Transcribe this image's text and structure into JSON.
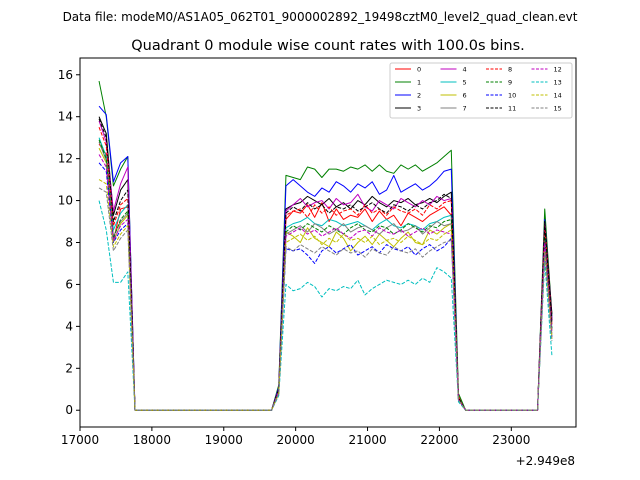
{
  "figure": {
    "suptitle": "Data file: modeM0/AS1A05_062T01_9000002892_19498cztM0_level2_quad_clean.evt"
  },
  "chart_data": {
    "type": "line",
    "title": "Quadrant 0 module wise count rates with 100.0s bins.",
    "xlabel": "",
    "ylabel": "",
    "x_offset_label": "+2.949e8",
    "xlim": [
      17000,
      23900
    ],
    "ylim": [
      -0.8,
      16.8
    ],
    "xticks": [
      17000,
      18000,
      19000,
      20000,
      21000,
      22000,
      23000
    ],
    "yticks": [
      0,
      2,
      4,
      6,
      8,
      10,
      12,
      14,
      16
    ],
    "xtick_labels": [
      "17000",
      "18000",
      "19000",
      "20000",
      "21000",
      "22000",
      "23000"
    ],
    "ytick_labels": [
      "0",
      "2",
      "4",
      "6",
      "8",
      "10",
      "12",
      "14",
      "16"
    ],
    "grid": false,
    "legend_position": "top-right",
    "legend_columns": 4,
    "x": [
      17265,
      17365,
      17465,
      17565,
      17665,
      17765,
      17865,
      19665,
      19765,
      19865,
      19965,
      20065,
      20165,
      20265,
      20365,
      20465,
      20565,
      20665,
      20765,
      20865,
      20965,
      21065,
      21165,
      21265,
      21365,
      21465,
      21565,
      21665,
      21765,
      21865,
      21965,
      22065,
      22165,
      22265,
      22365,
      23365,
      23465,
      23565
    ],
    "series": [
      {
        "name": "0",
        "color": "#ff0000",
        "dash": "solid",
        "values": [
          12.7,
          12.2,
          8.1,
          9.6,
          9.7,
          0,
          0,
          0,
          1.0,
          9.1,
          9.5,
          9.4,
          9.8,
          9.2,
          9.9,
          9.0,
          9.6,
          9.1,
          9.3,
          9.2,
          9.6,
          9.0,
          9.5,
          9.1,
          9.3,
          8.8,
          9.4,
          9.2,
          9.0,
          9.3,
          9.5,
          9.7,
          9.3,
          0.7,
          0,
          0,
          8.4,
          4.3
        ]
      },
      {
        "name": "1",
        "color": "#008000",
        "dash": "solid",
        "values": [
          15.7,
          14.0,
          10.7,
          11.5,
          12.1,
          0,
          0,
          0,
          1.2,
          11.2,
          11.1,
          11.0,
          11.6,
          11.5,
          11.1,
          11.5,
          11.5,
          11.4,
          11.6,
          11.5,
          11.7,
          11.4,
          11.7,
          11.4,
          11.3,
          11.7,
          11.5,
          11.7,
          11.4,
          11.6,
          11.8,
          12.1,
          12.4,
          0.8,
          0,
          0,
          9.6,
          4.5
        ]
      },
      {
        "name": "2",
        "color": "#0000ff",
        "dash": "solid",
        "values": [
          14.5,
          14.1,
          10.9,
          11.8,
          12.1,
          0,
          0,
          0,
          1.1,
          10.7,
          11.0,
          10.7,
          10.4,
          10.2,
          10.6,
          10.4,
          10.9,
          10.7,
          10.4,
          10.8,
          10.6,
          10.9,
          10.3,
          10.5,
          11.2,
          10.4,
          10.6,
          10.8,
          10.5,
          10.7,
          11.0,
          11.4,
          11.5,
          0.5,
          0,
          0,
          9.1,
          4.4
        ]
      },
      {
        "name": "3",
        "color": "#000000",
        "dash": "solid",
        "values": [
          14.0,
          13.2,
          9.3,
          10.5,
          11.0,
          0,
          0,
          0,
          1.0,
          9.6,
          9.8,
          9.9,
          10.2,
          10.0,
          9.8,
          10.1,
          9.7,
          9.9,
          9.6,
          10.0,
          9.8,
          10.2,
          9.9,
          9.7,
          10.0,
          9.9,
          10.1,
          9.8,
          9.9,
          10.1,
          9.9,
          10.2,
          10.4,
          0.6,
          0,
          0,
          9.0,
          4.6
        ]
      },
      {
        "name": "4",
        "color": "#bf00bf",
        "dash": "solid",
        "values": [
          13.8,
          12.8,
          9.5,
          10.8,
          11.6,
          0,
          0,
          0,
          1.0,
          9.5,
          9.8,
          10.1,
          9.7,
          9.9,
          10.0,
          9.6,
          10.1,
          9.8,
          9.9,
          10.3,
          9.7,
          9.5,
          10.0,
          9.8,
          9.6,
          10.1,
          9.9,
          9.7,
          10.0,
          9.8,
          10.2,
          10.0,
          10.1,
          0.6,
          0,
          0,
          8.9,
          4.3
        ]
      },
      {
        "name": "5",
        "color": "#00bfbf",
        "dash": "solid",
        "values": [
          13.0,
          12.1,
          8.6,
          9.4,
          9.8,
          0,
          0,
          0,
          0.9,
          8.7,
          8.9,
          9.0,
          9.2,
          8.9,
          8.8,
          9.1,
          9.0,
          8.8,
          8.9,
          9.0,
          8.8,
          8.6,
          8.9,
          9.1,
          8.8,
          8.7,
          8.9,
          8.8,
          8.6,
          8.9,
          9.0,
          9.2,
          9.3,
          0.6,
          0,
          0,
          8.3,
          3.9
        ]
      },
      {
        "name": "6",
        "color": "#bfbf00",
        "dash": "solid",
        "values": [
          12.5,
          11.8,
          8.0,
          8.9,
          9.3,
          0,
          0,
          0,
          0.8,
          8.5,
          8.3,
          8.0,
          8.7,
          8.2,
          8.0,
          7.8,
          8.5,
          8.2,
          7.6,
          8.0,
          8.3,
          7.9,
          8.4,
          8.1,
          7.8,
          8.2,
          8.5,
          8.0,
          7.9,
          8.6,
          8.4,
          8.7,
          8.9,
          0.5,
          0,
          0,
          7.9,
          3.6
        ]
      },
      {
        "name": "7",
        "color": "#808080",
        "dash": "solid",
        "values": [
          12.8,
          11.9,
          8.3,
          9.0,
          9.4,
          0,
          0,
          0,
          0.9,
          8.4,
          8.6,
          8.8,
          8.5,
          8.9,
          8.7,
          8.4,
          8.6,
          8.9,
          8.5,
          8.7,
          8.8,
          8.6,
          8.4,
          8.7,
          8.9,
          8.5,
          8.6,
          8.8,
          8.4,
          8.7,
          9.0,
          8.8,
          8.9,
          0.6,
          0,
          0,
          8.0,
          3.8
        ]
      },
      {
        "name": "8",
        "color": "#ff0000",
        "dash": "dashed",
        "values": [
          13.5,
          12.6,
          8.8,
          9.8,
          10.1,
          0,
          0,
          0,
          1.0,
          9.3,
          9.5,
          9.6,
          9.2,
          9.8,
          9.4,
          9.7,
          9.3,
          9.5,
          9.6,
          9.3,
          9.8,
          9.4,
          9.6,
          9.3,
          9.7,
          9.5,
          9.4,
          9.6,
          9.3,
          9.8,
          9.6,
          9.9,
          10.0,
          0.6,
          0,
          0,
          8.8,
          4.1
        ]
      },
      {
        "name": "9",
        "color": "#008000",
        "dash": "dashed",
        "values": [
          12.9,
          12.0,
          8.2,
          9.1,
          9.5,
          0,
          0,
          0,
          0.9,
          8.5,
          8.8,
          8.6,
          8.9,
          8.7,
          8.5,
          8.8,
          8.6,
          8.4,
          8.7,
          8.9,
          8.6,
          8.5,
          8.8,
          8.7,
          8.4,
          8.6,
          8.9,
          8.7,
          8.5,
          8.8,
          8.7,
          9.0,
          9.1,
          0.5,
          0,
          0,
          8.2,
          3.9
        ]
      },
      {
        "name": "10",
        "color": "#0000ff",
        "dash": "dashed",
        "values": [
          11.8,
          11.4,
          8.0,
          8.6,
          8.9,
          0,
          0,
          0,
          0.8,
          7.7,
          7.6,
          7.7,
          7.4,
          7.0,
          7.6,
          7.8,
          7.5,
          7.7,
          7.9,
          7.4,
          7.6,
          7.8,
          7.5,
          7.9,
          7.7,
          7.6,
          7.8,
          7.4,
          7.7,
          7.9,
          7.6,
          7.8,
          8.2,
          0.5,
          0,
          0,
          7.7,
          3.5
        ]
      },
      {
        "name": "11",
        "color": "#000000",
        "dash": "dashed",
        "values": [
          13.9,
          13.0,
          9.0,
          10.0,
          10.5,
          0,
          0,
          0,
          1.0,
          9.4,
          9.7,
          9.5,
          9.9,
          9.6,
          9.8,
          9.4,
          9.7,
          9.6,
          9.8,
          9.5,
          9.7,
          9.9,
          9.6,
          9.4,
          9.8,
          9.7,
          9.5,
          9.8,
          9.6,
          9.9,
          10.0,
          10.3,
          10.1,
          0.6,
          0,
          0,
          8.9,
          4.2
        ]
      },
      {
        "name": "12",
        "color": "#bf00bf",
        "dash": "dashed",
        "values": [
          12.2,
          11.6,
          8.1,
          8.8,
          9.1,
          0,
          0,
          0,
          0.9,
          8.3,
          8.5,
          8.7,
          8.4,
          8.6,
          8.3,
          8.5,
          8.7,
          8.4,
          8.2,
          8.5,
          8.6,
          8.3,
          8.7,
          8.5,
          8.4,
          8.6,
          8.3,
          8.5,
          8.7,
          8.4,
          8.6,
          8.5,
          8.4,
          0.5,
          0,
          0,
          8.0,
          3.7
        ]
      },
      {
        "name": "13",
        "color": "#00bfbf",
        "dash": "dashed",
        "values": [
          10.0,
          8.6,
          6.1,
          6.1,
          6.6,
          0,
          0,
          0,
          0.7,
          6.0,
          5.7,
          5.8,
          6.1,
          5.9,
          5.4,
          5.8,
          5.7,
          5.9,
          5.8,
          6.2,
          5.5,
          5.8,
          6.0,
          6.2,
          6.1,
          6.0,
          6.2,
          6.0,
          6.3,
          6.1,
          6.8,
          6.6,
          6.3,
          0.4,
          0,
          0,
          7.1,
          2.6
        ]
      },
      {
        "name": "14",
        "color": "#bfbf00",
        "dash": "dashed",
        "values": [
          11.0,
          10.8,
          7.8,
          8.4,
          8.8,
          0,
          0,
          0,
          0.8,
          8.0,
          8.2,
          8.4,
          8.1,
          8.3,
          7.9,
          8.2,
          8.0,
          8.4,
          8.1,
          8.2,
          8.0,
          8.3,
          7.9,
          8.1,
          8.2,
          8.0,
          8.3,
          8.1,
          7.9,
          8.2,
          8.1,
          8.4,
          8.6,
          0.5,
          0,
          0,
          7.6,
          3.4
        ]
      },
      {
        "name": "15",
        "color": "#808080",
        "dash": "dashed",
        "values": [
          10.6,
          10.4,
          7.6,
          8.2,
          8.6,
          0,
          0,
          0,
          0.8,
          7.8,
          7.6,
          7.9,
          7.7,
          7.5,
          7.8,
          7.6,
          7.4,
          7.7,
          7.5,
          7.6,
          7.3,
          7.7,
          7.5,
          7.4,
          7.8,
          7.6,
          7.5,
          7.7,
          7.3,
          7.6,
          7.8,
          8.0,
          8.1,
          0.5,
          0,
          0,
          7.5,
          3.3
        ]
      }
    ]
  }
}
